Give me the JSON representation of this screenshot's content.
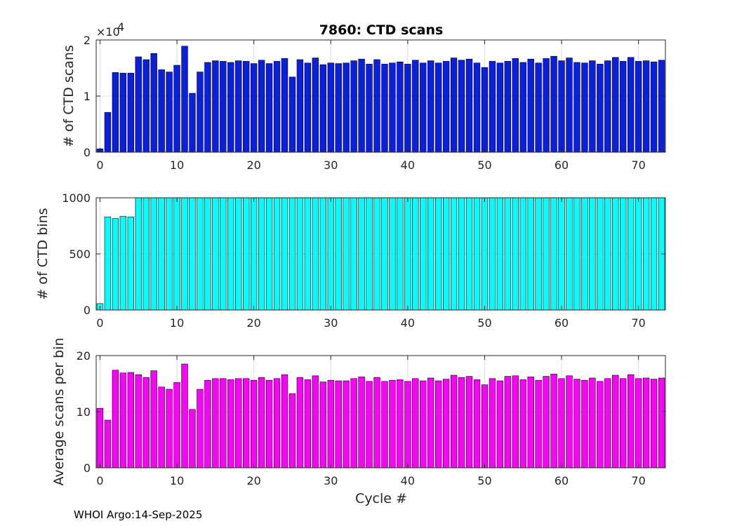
{
  "title": "7860: CTD scans",
  "footer": "WHOI Argo:14-Sep-2025",
  "xlabel": "Cycle #",
  "x_ticks": [
    0,
    10,
    20,
    30,
    40,
    50,
    60,
    70
  ],
  "chart_data": [
    {
      "type": "bar",
      "ylabel": "# of CTD scans",
      "y_multiplier": "×10",
      "y_multiplier_exp": "4",
      "ylim": [
        0,
        20000
      ],
      "y_ticks": [
        0,
        10000,
        20000
      ],
      "y_tick_labels": [
        "0",
        "1",
        "2"
      ],
      "xlim": [
        -0.5,
        73.5
      ],
      "color": "#0a1fe0",
      "grid": true,
      "x": [
        0,
        1,
        2,
        3,
        4,
        5,
        6,
        7,
        8,
        9,
        10,
        11,
        12,
        13,
        14,
        15,
        16,
        17,
        18,
        19,
        20,
        21,
        22,
        23,
        24,
        25,
        26,
        27,
        28,
        29,
        30,
        31,
        32,
        33,
        34,
        35,
        36,
        37,
        38,
        39,
        40,
        41,
        42,
        43,
        44,
        45,
        46,
        47,
        48,
        49,
        50,
        51,
        52,
        53,
        54,
        55,
        56,
        57,
        58,
        59,
        60,
        61,
        62,
        63,
        64,
        65,
        66,
        67,
        68,
        69,
        70,
        71,
        72,
        73
      ],
      "values": [
        600,
        7100,
        14200,
        14100,
        14100,
        17000,
        16500,
        17600,
        14700,
        14300,
        15500,
        18900,
        10500,
        14300,
        16000,
        16300,
        16200,
        16000,
        16300,
        16200,
        15800,
        16400,
        15800,
        16200,
        16700,
        13400,
        16500,
        15900,
        16800,
        15600,
        15900,
        15800,
        15900,
        16300,
        16600,
        15700,
        16500,
        15700,
        15900,
        16100,
        15700,
        16400,
        15900,
        16300,
        15900,
        16200,
        16800,
        16400,
        16600,
        15900,
        15100,
        16200,
        15900,
        16200,
        16700,
        16000,
        16600,
        15900,
        16700,
        17100,
        16300,
        16800,
        16000,
        15900,
        16300,
        15700,
        16300,
        16900,
        16200,
        16900,
        16200,
        16300,
        16100,
        16400
      ]
    },
    {
      "type": "bar",
      "ylabel": "# of CTD bins",
      "ylim": [
        0,
        1000
      ],
      "y_ticks": [
        0,
        500,
        1000
      ],
      "y_tick_labels": [
        "0",
        "500",
        "1000"
      ],
      "xlim": [
        -0.5,
        73.5
      ],
      "color": "#00ffff",
      "grid": true,
      "x": [
        0,
        1,
        2,
        3,
        4,
        5,
        6,
        7,
        8,
        9,
        10,
        11,
        12,
        13,
        14,
        15,
        16,
        17,
        18,
        19,
        20,
        21,
        22,
        23,
        24,
        25,
        26,
        27,
        28,
        29,
        30,
        31,
        32,
        33,
        34,
        35,
        36,
        37,
        38,
        39,
        40,
        41,
        42,
        43,
        44,
        45,
        46,
        47,
        48,
        49,
        50,
        51,
        52,
        53,
        54,
        55,
        56,
        57,
        58,
        59,
        60,
        61,
        62,
        63,
        64,
        65,
        66,
        67,
        68,
        69,
        70,
        71,
        72,
        73
      ],
      "values": [
        57,
        830,
        815,
        834,
        830,
        1024,
        1024,
        1024,
        1024,
        1024,
        1024,
        1024,
        1020,
        1024,
        1024,
        1024,
        1020,
        1024,
        1024,
        1024,
        1024,
        1024,
        1020,
        1024,
        1020,
        1024,
        1024,
        1024,
        1024,
        1024,
        1024,
        1020,
        1024,
        1024,
        1024,
        1024,
        1024,
        1024,
        1024,
        1024,
        1024,
        1024,
        1024,
        1024,
        1024,
        1024,
        1024,
        1024,
        1024,
        1020,
        1024,
        1024,
        1020,
        1024,
        1024,
        1024,
        1024,
        1024,
        1024,
        1020,
        1024,
        1024,
        1020,
        1024,
        1024,
        1024,
        1024,
        1024,
        1024,
        1020,
        1020,
        1020,
        1024,
        1024
      ]
    },
    {
      "type": "bar",
      "ylabel": "Average scans per bin",
      "ylim": [
        0,
        20
      ],
      "y_ticks": [
        0,
        10,
        20
      ],
      "y_tick_labels": [
        "0",
        "10",
        "20"
      ],
      "xlim": [
        -0.5,
        73.5
      ],
      "color": "#ff00ff",
      "grid": true,
      "x": [
        0,
        1,
        2,
        3,
        4,
        5,
        6,
        7,
        8,
        9,
        10,
        11,
        12,
        13,
        14,
        15,
        16,
        17,
        18,
        19,
        20,
        21,
        22,
        23,
        24,
        25,
        26,
        27,
        28,
        29,
        30,
        31,
        32,
        33,
        34,
        35,
        36,
        37,
        38,
        39,
        40,
        41,
        42,
        43,
        44,
        45,
        46,
        47,
        48,
        49,
        50,
        51,
        52,
        53,
        54,
        55,
        56,
        57,
        58,
        59,
        60,
        61,
        62,
        63,
        64,
        65,
        66,
        67,
        68,
        69,
        70,
        71,
        72,
        73
      ],
      "values": [
        10.6,
        8.5,
        17.4,
        16.9,
        17.0,
        16.6,
        16.1,
        17.3,
        14.4,
        14.0,
        15.2,
        18.5,
        10.4,
        14.0,
        15.6,
        15.9,
        15.9,
        15.7,
        15.9,
        15.9,
        15.6,
        16.1,
        15.6,
        15.9,
        16.6,
        13.2,
        16.1,
        15.7,
        16.4,
        15.3,
        15.6,
        15.5,
        15.5,
        15.9,
        16.2,
        15.4,
        16.1,
        15.4,
        15.6,
        15.7,
        15.4,
        15.9,
        15.5,
        16.0,
        15.5,
        15.8,
        16.5,
        16.1,
        16.3,
        15.7,
        14.8,
        15.9,
        15.5,
        16.3,
        16.4,
        15.7,
        16.2,
        15.6,
        16.3,
        16.7,
        15.9,
        16.4,
        15.8,
        15.6,
        16.0,
        15.4,
        15.9,
        16.5,
        15.9,
        16.6,
        15.9,
        16.0,
        15.8,
        16.0
      ]
    }
  ]
}
